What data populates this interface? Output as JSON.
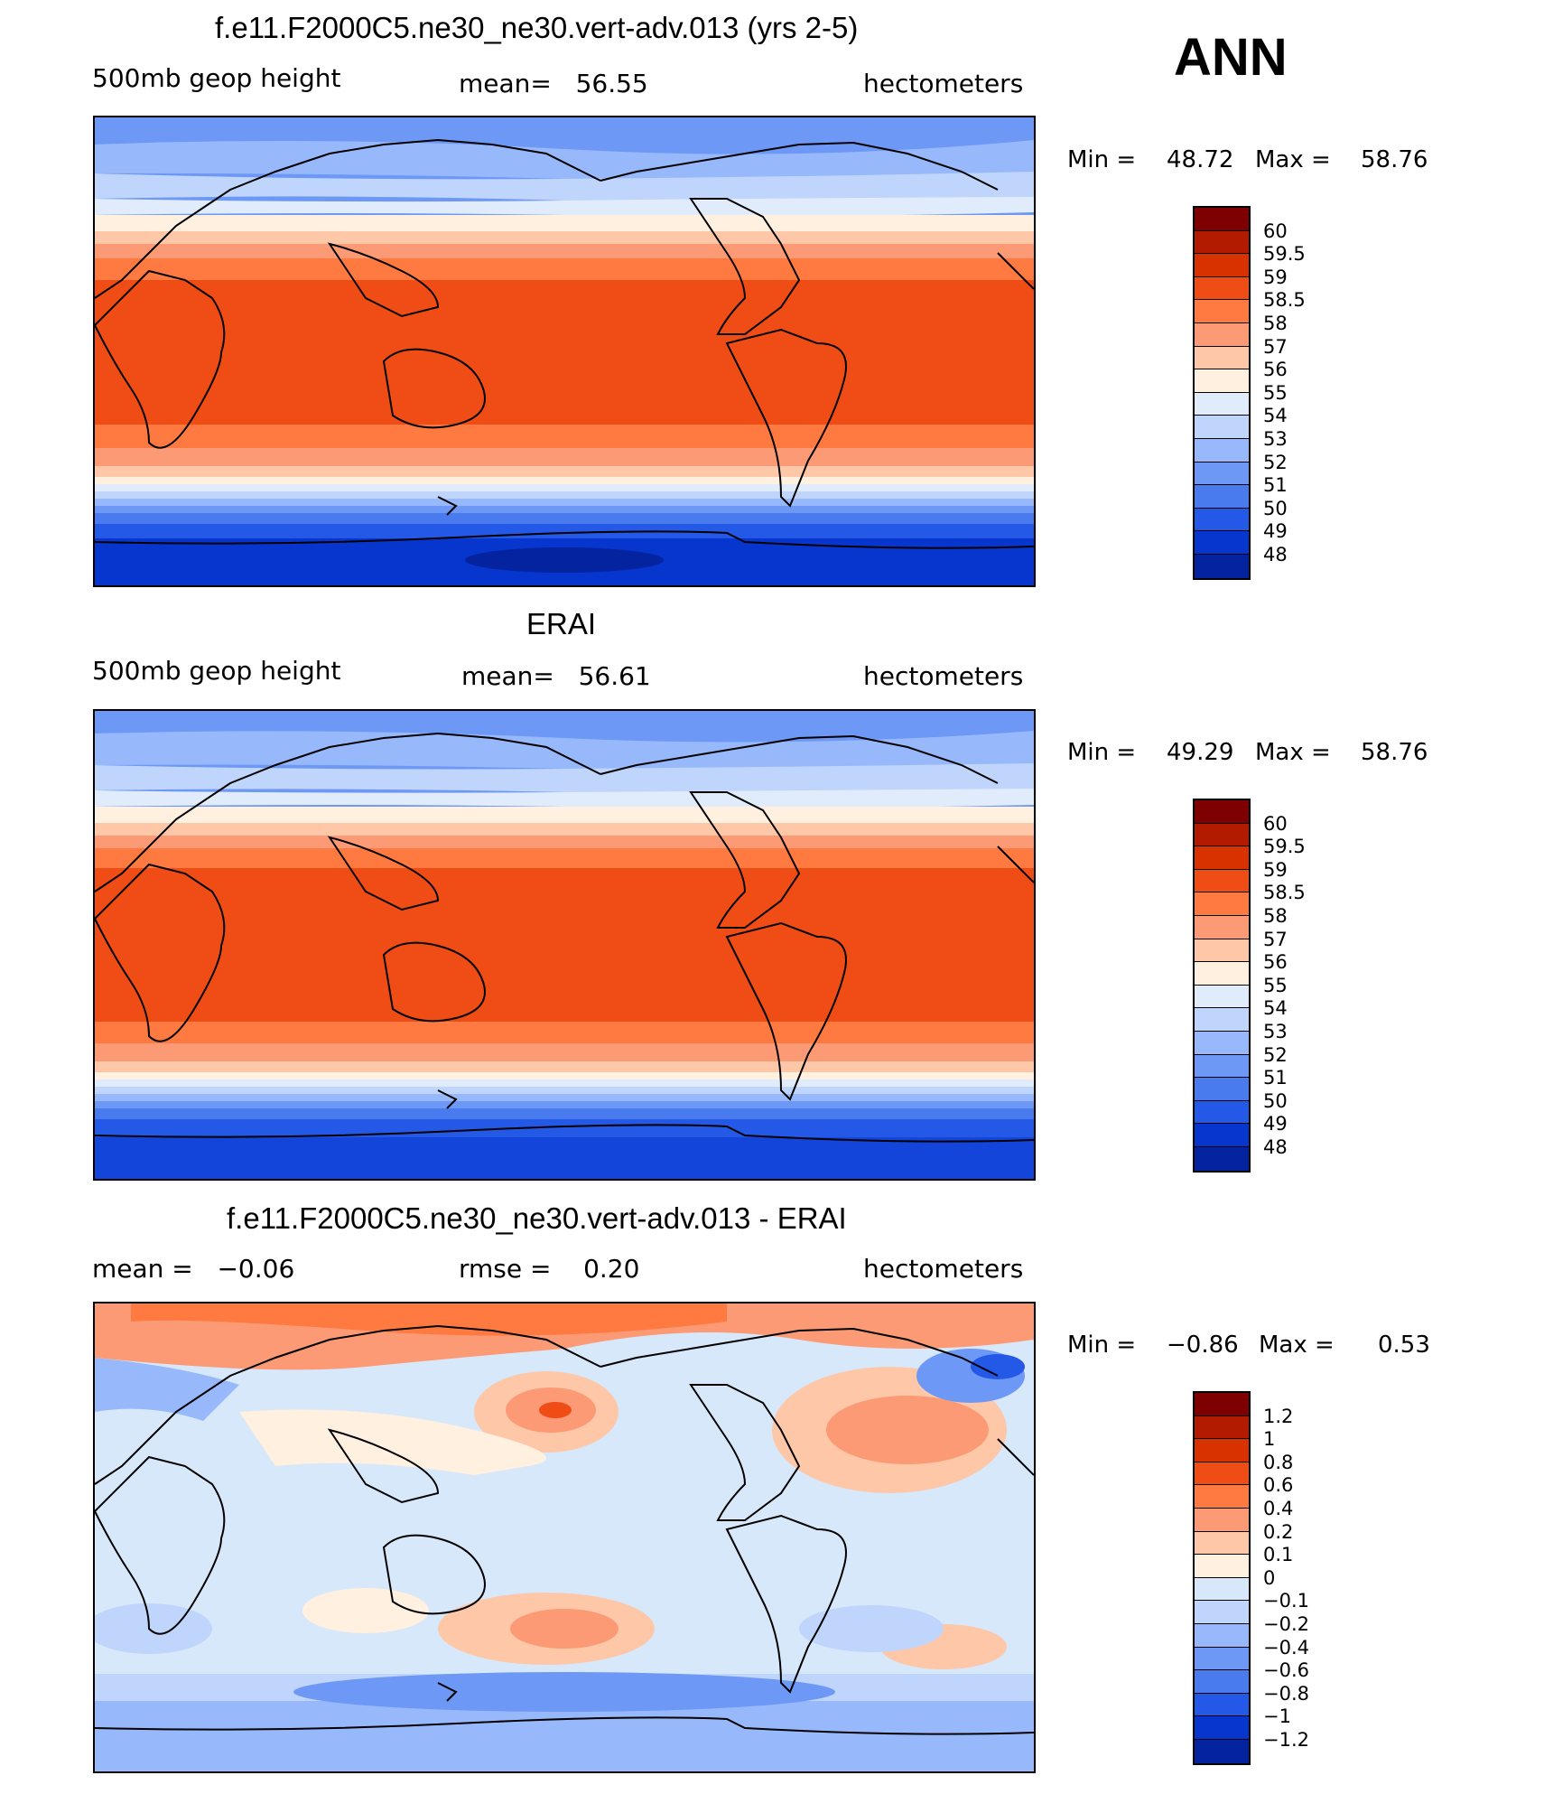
{
  "season": "ANN",
  "panels": [
    {
      "id": "model",
      "title": "f.e11.F2000C5.ne30_ne30.vert-adv.013 (yrs 2-5)",
      "left_label": "500mb geop height",
      "center_label": "mean=   56.55",
      "units": "hectometers",
      "stat_min_label": "Min =",
      "stat_min": "48.72",
      "stat_max_label": "Max =",
      "stat_max": "58.76",
      "colorbar": {
        "labels": [
          "60",
          "59.5",
          "59",
          "58.5",
          "58",
          "57",
          "56",
          "55",
          "54",
          "53",
          "52",
          "51",
          "50",
          "49",
          "48"
        ],
        "colors": [
          "#7f0000",
          "#b31b00",
          "#d83200",
          "#f04d16",
          "#ff7a40",
          "#fc9a75",
          "#fdc7a8",
          "#fff0e0",
          "#e0ecfb",
          "#bfd5fb",
          "#97b9fb",
          "#6e98f5",
          "#4a7bee",
          "#2458e6",
          "#0736cf",
          "#04239e"
        ]
      }
    },
    {
      "id": "obs",
      "title": "ERAI",
      "left_label": "500mb geop height",
      "center_label": "mean=   56.61",
      "units": "hectometers",
      "stat_min_label": "Min =",
      "stat_min": "49.29",
      "stat_max_label": "Max =",
      "stat_max": "58.76",
      "colorbar": {
        "labels": [
          "60",
          "59.5",
          "59",
          "58.5",
          "58",
          "57",
          "56",
          "55",
          "54",
          "53",
          "52",
          "51",
          "50",
          "49",
          "48"
        ],
        "colors": [
          "#7f0000",
          "#b31b00",
          "#d83200",
          "#f04d16",
          "#ff7a40",
          "#fc9a75",
          "#fdc7a8",
          "#fff0e0",
          "#e0ecfb",
          "#bfd5fb",
          "#97b9fb",
          "#6e98f5",
          "#4a7bee",
          "#2458e6",
          "#0736cf",
          "#04239e"
        ]
      }
    },
    {
      "id": "diff",
      "title": "f.e11.F2000C5.ne30_ne30.vert-adv.013 - ERAI",
      "left_label": "mean =   −0.06",
      "center_label": "rmse =    0.20",
      "units": "hectometers",
      "stat_min_label": "Min =",
      "stat_min": "−0.86",
      "stat_max_label": "Max =",
      "stat_max": "0.53",
      "colorbar": {
        "labels": [
          "1.2",
          "1",
          "0.8",
          "0.6",
          "0.4",
          "0.2",
          "0.1",
          "0",
          "−0.1",
          "−0.2",
          "−0.4",
          "−0.6",
          "−0.8",
          "−1",
          "−1.2"
        ],
        "colors": [
          "#7f0000",
          "#b31b00",
          "#d83200",
          "#f04d16",
          "#ff7a40",
          "#fc9a75",
          "#fdc7a8",
          "#fff0e0",
          "#d8e8fb",
          "#bfd5fb",
          "#97b9fb",
          "#6e98f5",
          "#4a7bee",
          "#2458e6",
          "#0736cf",
          "#04239e"
        ]
      }
    }
  ]
}
